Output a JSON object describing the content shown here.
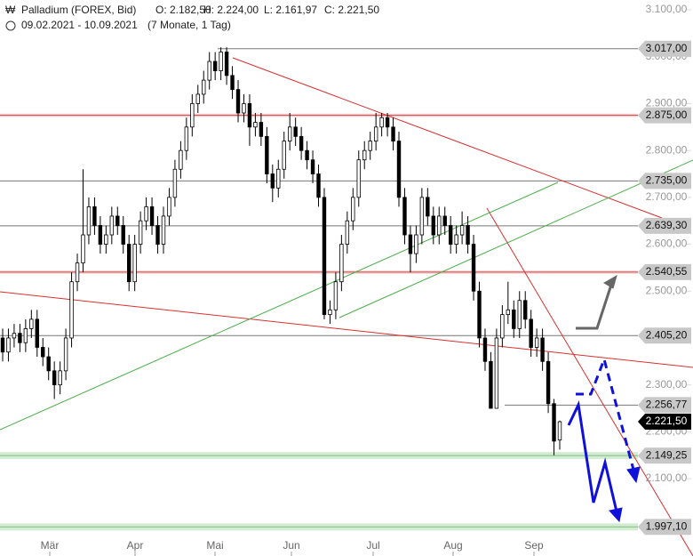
{
  "chart_data": {
    "type": "candlestick",
    "title": "Palladium (FOREX, Bid)",
    "ohlc_labels": [
      "O: 2.182,50",
      "H: 2.224,00",
      "L: 2.161,97",
      "C: 2.221,50"
    ],
    "date_range": "09.02.2021 - 10.09.2021",
    "duration": "(7 Monate, 1 Tag)",
    "ylim": [
      1935,
      3121
    ],
    "yticks": [
      {
        "value": 2100,
        "label": "2.100,00"
      },
      {
        "value": 2200,
        "label": "2.200,00"
      },
      {
        "value": 2300,
        "label": "2.300,00"
      },
      {
        "value": 2400,
        "label": "2.400,00"
      },
      {
        "value": 2500,
        "label": "2.500,00"
      },
      {
        "value": 2600,
        "label": "2.600,00"
      },
      {
        "value": 2700,
        "label": "2.700,00"
      },
      {
        "value": 2800,
        "label": "2.800,00"
      },
      {
        "value": 2900,
        "label": "2.900,00"
      },
      {
        "value": 3000,
        "label": "3.000,00"
      },
      {
        "value": 3100,
        "label": "3.100,00"
      }
    ],
    "months": [
      "Mär",
      "Apr",
      "Mai",
      "Jun",
      "Jul",
      "Aug",
      "Sep"
    ],
    "levels": [
      {
        "value": 3017,
        "label": "3.017,00",
        "color": "#777777"
      },
      {
        "value": 2875,
        "label": "2.875,00",
        "color": "#d04040"
      },
      {
        "value": 2735,
        "label": "2.735,00",
        "color": "#777777"
      },
      {
        "value": 2639.3,
        "label": "2.639,30",
        "color": "#777777"
      },
      {
        "value": 2540.55,
        "label": "2.540,55",
        "color": "#d04040"
      },
      {
        "value": 2405.2,
        "label": "2.405,20",
        "color": "#777777"
      },
      {
        "value": 2256.77,
        "label": "2.256,77",
        "color": "#777777"
      },
      {
        "value": 2149.25,
        "label": "2.149,25",
        "color": "#7cbf7c"
      },
      {
        "value": 1997.1,
        "label": "1.997,10",
        "color": "#7cbf7c"
      }
    ],
    "current": {
      "value": 2221.5,
      "label": "2.221,50"
    },
    "open": [
      2400,
      2370,
      2400,
      2410,
      2390,
      2420,
      2440,
      2380,
      2360,
      2330,
      2300,
      2330,
      2400,
      2520,
      2560,
      2620,
      2680,
      2640,
      2600,
      2620,
      2660,
      2640,
      2600,
      2520,
      2600,
      2650,
      2680,
      2640,
      2600,
      2660,
      2700,
      2760,
      2800,
      2850,
      2900,
      2920,
      2950,
      2990,
      2970,
      3010,
      2960,
      2930,
      2880,
      2900,
      2850,
      2860,
      2830,
      2750,
      2720,
      2760,
      2820,
      2850,
      2830,
      2800,
      2780,
      2750,
      2700,
      2450,
      2460,
      2520,
      2600,
      2650,
      2700,
      2780,
      2800,
      2820,
      2850,
      2870,
      2850,
      2820,
      2700,
      2620,
      2580,
      2620,
      2700,
      2660,
      2620,
      2660,
      2640,
      2600,
      2620,
      2640,
      2600,
      2500,
      2400,
      2350,
      2250,
      2400,
      2450,
      2460,
      2420,
      2480,
      2440,
      2380,
      2400,
      2350,
      2260,
      2182.5
    ],
    "high": [
      2420,
      2420,
      2430,
      2430,
      2440,
      2460,
      2460,
      2400,
      2380,
      2350,
      2350,
      2420,
      2540,
      2580,
      2760,
      2700,
      2700,
      2660,
      2640,
      2680,
      2680,
      2660,
      2620,
      2620,
      2670,
      2700,
      2700,
      2660,
      2680,
      2720,
      2780,
      2820,
      2870,
      2920,
      2940,
      2970,
      3010,
      3010,
      3020,
      3020,
      2980,
      2950,
      2920,
      2920,
      2880,
      2880,
      2850,
      2770,
      2780,
      2840,
      2880,
      2870,
      2850,
      2820,
      2800,
      2770,
      2720,
      2480,
      2540,
      2620,
      2670,
      2720,
      2800,
      2820,
      2840,
      2880,
      2880,
      2880,
      2870,
      2840,
      2720,
      2640,
      2640,
      2720,
      2720,
      2680,
      2680,
      2680,
      2660,
      2640,
      2670,
      2660,
      2620,
      2520,
      2420,
      2370,
      2420,
      2470,
      2520,
      2480,
      2500,
      2500,
      2460,
      2420,
      2420,
      2370,
      2270,
      2224
    ],
    "low": [
      2350,
      2350,
      2380,
      2370,
      2370,
      2400,
      2360,
      2340,
      2310,
      2270,
      2280,
      2310,
      2380,
      2500,
      2540,
      2600,
      2620,
      2580,
      2580,
      2600,
      2620,
      2580,
      2500,
      2500,
      2580,
      2630,
      2620,
      2580,
      2580,
      2640,
      2680,
      2740,
      2780,
      2830,
      2880,
      2900,
      2930,
      2950,
      2950,
      2940,
      2910,
      2860,
      2860,
      2810,
      2830,
      2810,
      2730,
      2690,
      2700,
      2740,
      2800,
      2810,
      2780,
      2760,
      2730,
      2680,
      2440,
      2430,
      2440,
      2500,
      2580,
      2630,
      2680,
      2760,
      2780,
      2800,
      2830,
      2830,
      2800,
      2680,
      2600,
      2540,
      2560,
      2600,
      2640,
      2600,
      2600,
      2620,
      2580,
      2580,
      2600,
      2580,
      2480,
      2380,
      2330,
      2250,
      2250,
      2380,
      2430,
      2400,
      2400,
      2420,
      2360,
      2360,
      2330,
      2240,
      2150,
      2161.97
    ],
    "close": [
      2370,
      2400,
      2410,
      2390,
      2420,
      2440,
      2380,
      2360,
      2330,
      2300,
      2330,
      2400,
      2520,
      2560,
      2620,
      2680,
      2640,
      2600,
      2620,
      2660,
      2640,
      2600,
      2520,
      2600,
      2650,
      2680,
      2640,
      2600,
      2660,
      2700,
      2760,
      2800,
      2850,
      2900,
      2920,
      2950,
      2990,
      2970,
      3010,
      2960,
      2930,
      2880,
      2900,
      2850,
      2860,
      2830,
      2750,
      2720,
      2760,
      2820,
      2850,
      2830,
      2800,
      2780,
      2750,
      2700,
      2450,
      2460,
      2520,
      2600,
      2650,
      2700,
      2780,
      2800,
      2820,
      2850,
      2870,
      2850,
      2820,
      2700,
      2620,
      2580,
      2620,
      2700,
      2660,
      2620,
      2660,
      2640,
      2600,
      2620,
      2640,
      2600,
      2500,
      2400,
      2350,
      2250,
      2400,
      2450,
      2460,
      2420,
      2480,
      2440,
      2380,
      2400,
      2350,
      2260,
      2180,
      2221.5
    ]
  }
}
